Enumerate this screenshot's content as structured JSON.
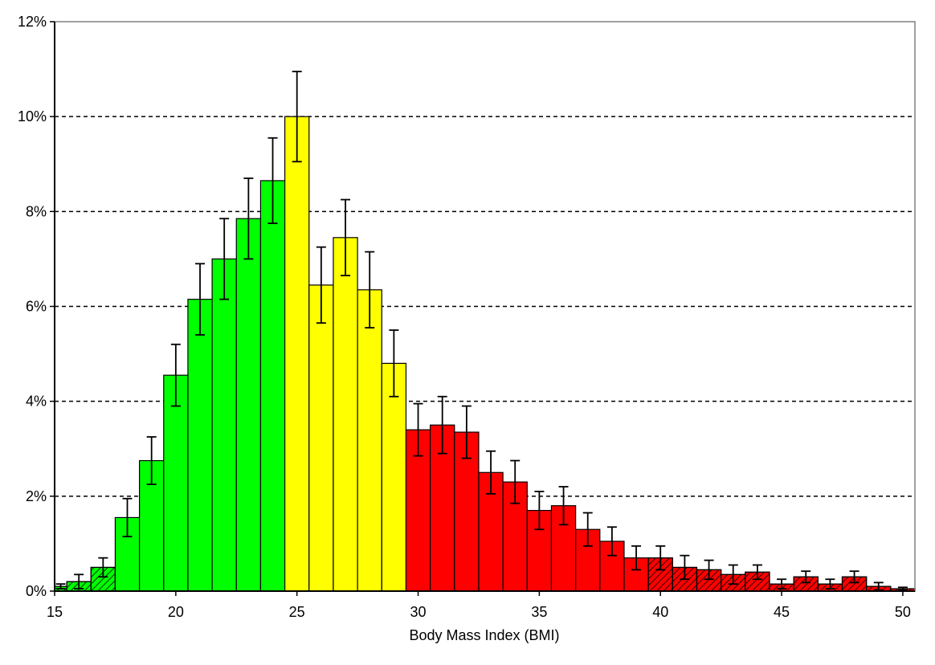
{
  "chart_data": {
    "type": "bar",
    "title": "",
    "xlabel": "Body Mass Index (BMI)",
    "ylabel": "",
    "xlim": [
      15,
      50.5
    ],
    "ylim": [
      0,
      12
    ],
    "x_ticks": [
      15,
      20,
      25,
      30,
      35,
      40,
      45,
      50
    ],
    "y_ticks": [
      0,
      2,
      4,
      6,
      8,
      10,
      12
    ],
    "y_tick_suffix": "%",
    "grid": "dashed horizontal",
    "legend": "none",
    "colors": {
      "underweight_normal": "#00ff00",
      "overweight": "#ffff00",
      "obese": "#ff0000",
      "error_bar": "#000000",
      "grid": "#000000"
    },
    "bars": [
      {
        "bin": 15,
        "value": 0.1,
        "err": 0.05,
        "color": "green",
        "hatched": true
      },
      {
        "bin": 16,
        "value": 0.2,
        "err": 0.15,
        "color": "green",
        "hatched": true
      },
      {
        "bin": 17,
        "value": 0.5,
        "err": 0.2,
        "color": "green",
        "hatched": true
      },
      {
        "bin": 18,
        "value": 1.55,
        "err": 0.4,
        "color": "green",
        "hatched": false
      },
      {
        "bin": 19,
        "value": 2.75,
        "err": 0.5,
        "color": "green",
        "hatched": false
      },
      {
        "bin": 20,
        "value": 4.55,
        "err": 0.65,
        "color": "green",
        "hatched": false
      },
      {
        "bin": 21,
        "value": 6.15,
        "err": 0.75,
        "color": "green",
        "hatched": false
      },
      {
        "bin": 22,
        "value": 7.0,
        "err": 0.85,
        "color": "green",
        "hatched": false
      },
      {
        "bin": 23,
        "value": 7.85,
        "err": 0.85,
        "color": "green",
        "hatched": false
      },
      {
        "bin": 24,
        "value": 8.65,
        "err": 0.9,
        "color": "green",
        "hatched": false
      },
      {
        "bin": 25,
        "value": 10.0,
        "err": 0.95,
        "color": "yellow",
        "hatched": false
      },
      {
        "bin": 26,
        "value": 6.45,
        "err": 0.8,
        "color": "yellow",
        "hatched": false
      },
      {
        "bin": 27,
        "value": 7.45,
        "err": 0.8,
        "color": "yellow",
        "hatched": false
      },
      {
        "bin": 28,
        "value": 6.35,
        "err": 0.8,
        "color": "yellow",
        "hatched": false
      },
      {
        "bin": 29,
        "value": 4.8,
        "err": 0.7,
        "color": "yellow",
        "hatched": false
      },
      {
        "bin": 30,
        "value": 3.4,
        "err": 0.55,
        "color": "red",
        "hatched": false
      },
      {
        "bin": 31,
        "value": 3.5,
        "err": 0.6,
        "color": "red",
        "hatched": false
      },
      {
        "bin": 32,
        "value": 3.35,
        "err": 0.55,
        "color": "red",
        "hatched": false
      },
      {
        "bin": 33,
        "value": 2.5,
        "err": 0.45,
        "color": "red",
        "hatched": false
      },
      {
        "bin": 34,
        "value": 2.3,
        "err": 0.45,
        "color": "red",
        "hatched": false
      },
      {
        "bin": 35,
        "value": 1.7,
        "err": 0.4,
        "color": "red",
        "hatched": false
      },
      {
        "bin": 36,
        "value": 1.8,
        "err": 0.4,
        "color": "red",
        "hatched": false
      },
      {
        "bin": 37,
        "value": 1.3,
        "err": 0.35,
        "color": "red",
        "hatched": false
      },
      {
        "bin": 38,
        "value": 1.05,
        "err": 0.3,
        "color": "red",
        "hatched": false
      },
      {
        "bin": 39,
        "value": 0.7,
        "err": 0.25,
        "color": "red",
        "hatched": false
      },
      {
        "bin": 40,
        "value": 0.7,
        "err": 0.25,
        "color": "red",
        "hatched": true
      },
      {
        "bin": 41,
        "value": 0.5,
        "err": 0.25,
        "color": "red",
        "hatched": true
      },
      {
        "bin": 42,
        "value": 0.45,
        "err": 0.2,
        "color": "red",
        "hatched": true
      },
      {
        "bin": 43,
        "value": 0.35,
        "err": 0.2,
        "color": "red",
        "hatched": true
      },
      {
        "bin": 44,
        "value": 0.4,
        "err": 0.15,
        "color": "red",
        "hatched": true
      },
      {
        "bin": 45,
        "value": 0.15,
        "err": 0.1,
        "color": "red",
        "hatched": true
      },
      {
        "bin": 46,
        "value": 0.3,
        "err": 0.12,
        "color": "red",
        "hatched": true
      },
      {
        "bin": 47,
        "value": 0.15,
        "err": 0.1,
        "color": "red",
        "hatched": true
      },
      {
        "bin": 48,
        "value": 0.3,
        "err": 0.12,
        "color": "red",
        "hatched": true
      },
      {
        "bin": 49,
        "value": 0.1,
        "err": 0.08,
        "color": "red",
        "hatched": true
      },
      {
        "bin": 50,
        "value": 0.05,
        "err": 0.03,
        "color": "red",
        "hatched": true
      }
    ]
  }
}
